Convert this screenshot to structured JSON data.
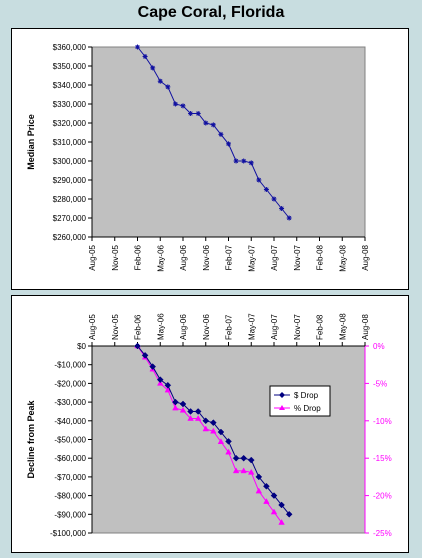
{
  "title": "Cape Coral, Florida",
  "x_categories": [
    "Aug-05",
    "Nov-05",
    "Feb-06",
    "May-06",
    "Aug-06",
    "Nov-06",
    "Feb-07",
    "May-07",
    "Aug-07",
    "Nov-07",
    "Feb-08",
    "May-08",
    "Aug-08"
  ],
  "chart_data": [
    {
      "type": "line",
      "ylabel": "Median Price",
      "ylim": [
        260000,
        360000
      ],
      "ytick_step": 10000,
      "yticks_format": "$",
      "grid": false,
      "series": [
        {
          "color": "#1010a0",
          "x": [
            "2006-02",
            "2006-03",
            "2006-04",
            "2006-05",
            "2006-06",
            "2006-07",
            "2006-08",
            "2006-09",
            "2006-10",
            "2006-11",
            "2006-12",
            "2007-01",
            "2007-02",
            "2007-03",
            "2007-04",
            "2007-05",
            "2007-06",
            "2007-07",
            "2007-08",
            "2007-09",
            "2007-10"
          ],
          "values": [
            360000,
            355000,
            349000,
            342000,
            339000,
            330000,
            329000,
            325000,
            325000,
            320000,
            319000,
            314000,
            309000,
            300000,
            300000,
            299000,
            290000,
            285000,
            280000,
            275000,
            270000
          ]
        }
      ]
    },
    {
      "type": "line",
      "ylabel": "Decline from Peak",
      "ylim": [
        -100000,
        0
      ],
      "ytick_step": 10000,
      "yticks_format": "$",
      "y2lim": [
        -25,
        0
      ],
      "y2tick_step": 5,
      "y2ticks_format": "%",
      "grid": false,
      "legend_position": "right",
      "series": [
        {
          "name": "$ Drop",
          "color": "#000080",
          "marker": "diamond",
          "axis": "left",
          "x": [
            "2006-02",
            "2006-03",
            "2006-04",
            "2006-05",
            "2006-06",
            "2006-07",
            "2006-08",
            "2006-09",
            "2006-10",
            "2006-11",
            "2006-12",
            "2007-01",
            "2007-02",
            "2007-03",
            "2007-04",
            "2007-05",
            "2007-06",
            "2007-07",
            "2007-08",
            "2007-09",
            "2007-10"
          ],
          "values": [
            0,
            -5000,
            -11000,
            -18000,
            -21000,
            -30000,
            -31000,
            -35000,
            -35000,
            -40000,
            -41000,
            -46000,
            -51000,
            -60000,
            -60000,
            -61000,
            -70000,
            -75000,
            -80000,
            -85000,
            -90000
          ]
        },
        {
          "name": "% Drop",
          "color": "#ff00ff",
          "marker": "triangle",
          "axis": "right",
          "x": [
            "2006-02",
            "2006-03",
            "2006-04",
            "2006-05",
            "2006-06",
            "2006-07",
            "2006-08",
            "2006-09",
            "2006-10",
            "2006-11",
            "2006-12",
            "2007-01",
            "2007-02",
            "2007-03",
            "2007-04",
            "2007-05",
            "2007-06",
            "2007-07",
            "2007-08",
            "2007-09"
          ],
          "values": [
            0,
            -1.5,
            -3.1,
            -5.0,
            -5.9,
            -8.3,
            -8.6,
            -9.7,
            -9.7,
            -11.1,
            -11.4,
            -12.8,
            -14.2,
            -16.7,
            -16.7,
            -16.9,
            -19.4,
            -20.8,
            -22.2,
            -23.6
          ]
        }
      ]
    }
  ]
}
